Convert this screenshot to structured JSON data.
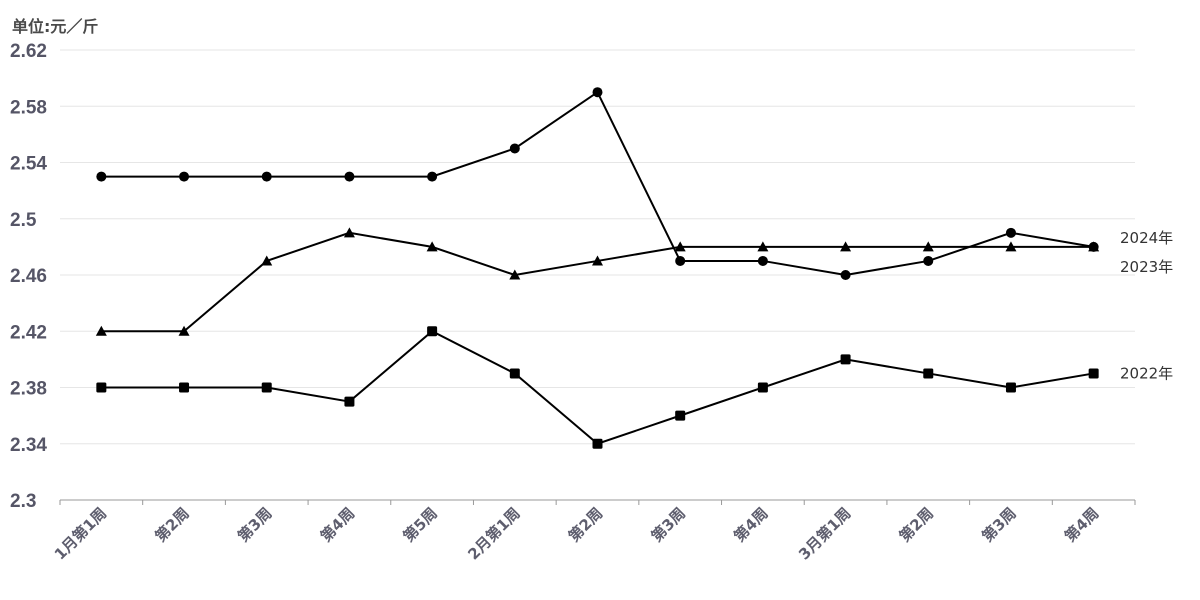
{
  "unit_label": "单位:元／斤",
  "chart_data": {
    "type": "line",
    "categories": [
      "1月第1周",
      "第2周",
      "第3周",
      "第4周",
      "第5周",
      "2月第1周",
      "第2周",
      "第3周",
      "第4周",
      "3月第1周",
      "第2周",
      "第3周",
      "第4周"
    ],
    "y_ticks": [
      "2.3",
      "2.34",
      "2.38",
      "2.42",
      "2.46",
      "2.5",
      "2.54",
      "2.58",
      "2.62"
    ],
    "ylim": [
      2.3,
      2.62
    ],
    "grid": true,
    "series": [
      {
        "name": "2024年",
        "marker": "circle",
        "color": "#000000",
        "values": [
          2.53,
          2.53,
          2.53,
          2.53,
          2.53,
          2.55,
          2.59,
          2.47,
          2.47,
          2.46,
          2.47,
          2.49,
          2.48
        ]
      },
      {
        "name": "2023年",
        "marker": "triangle",
        "color": "#000000",
        "values": [
          2.42,
          2.42,
          2.47,
          2.49,
          2.48,
          2.46,
          2.47,
          2.48,
          2.48,
          2.48,
          2.48,
          2.48,
          2.48
        ]
      },
      {
        "name": "2022年",
        "marker": "square",
        "color": "#000000",
        "values": [
          2.38,
          2.38,
          2.38,
          2.37,
          2.42,
          2.39,
          2.34,
          2.36,
          2.38,
          2.4,
          2.39,
          2.38,
          2.39
        ]
      }
    ]
  }
}
